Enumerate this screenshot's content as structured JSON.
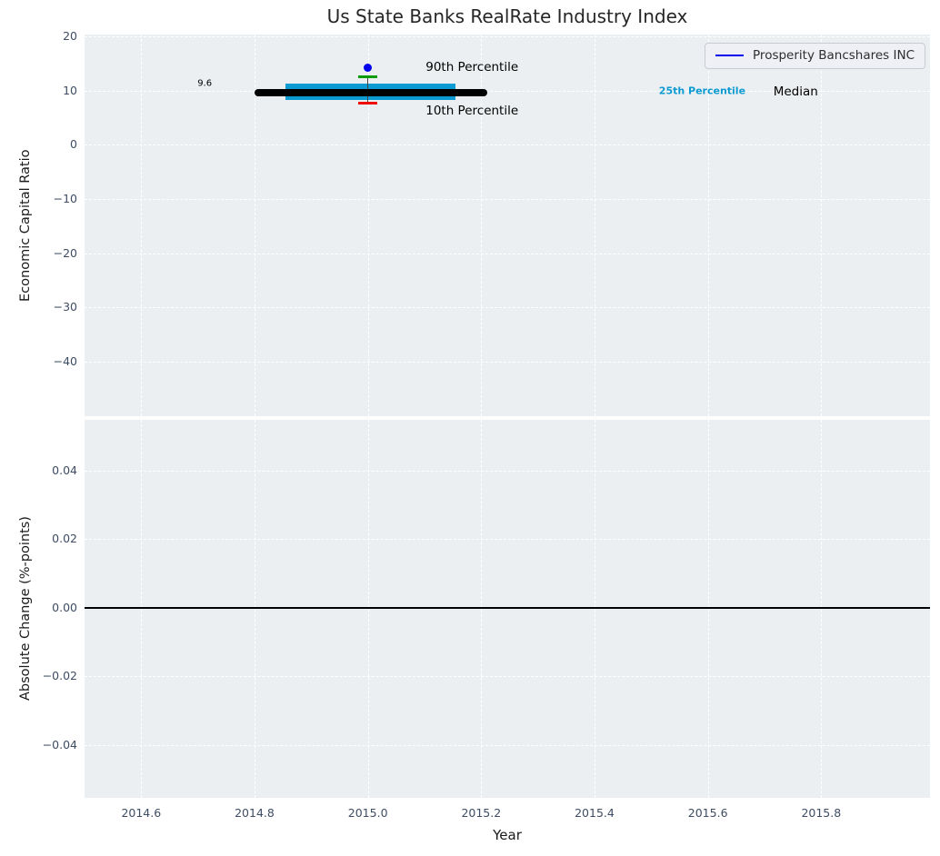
{
  "title": "Us State Banks RealRate Industry Index",
  "colors": {
    "axes_background": "#eceff1",
    "grid": "#ffffff",
    "tick_label": "#3e4d63",
    "axis_label": "#1a1a1a",
    "company_blue": "#0000ee",
    "iqr_cyan": "#0b9bd2",
    "p90_green": "#0a9c0a",
    "p10_red": "#f00808",
    "median_black": "#000000"
  },
  "legend": {
    "entries": [
      {
        "label": "Prosperity Bancshares INC",
        "color": "#0000ee"
      }
    ]
  },
  "chart_data": [
    {
      "type": "scatter",
      "title": "Us State Banks RealRate Industry Index",
      "ylabel": "Economic Capital Ratio",
      "xlim": [
        2014.5,
        2015.992
      ],
      "ylim": [
        -50.1,
        20.34
      ],
      "grid": "white dashed, on",
      "legend_position": "upper right",
      "yticks": {
        "values": [
          20,
          10,
          0,
          -10,
          -20,
          -30,
          -40
        ],
        "labels": [
          "20",
          "10",
          "0",
          "−10",
          "−20",
          "−30",
          "−40"
        ]
      },
      "xticks_grid_only": [
        2014.6,
        2014.8,
        2015.0,
        2015.2,
        2015.4,
        2015.6,
        2015.8
      ],
      "company_point": {
        "name": "Prosperity Bancshares INC",
        "x": 2015.0,
        "y": 14.2,
        "color": "#0000ee",
        "marker": "dot"
      },
      "industry_stats": {
        "median": {
          "value": 9.6,
          "x_start": 2014.8,
          "x_end": 2015.21,
          "color": "#000000",
          "style": "thick line, round caps"
        },
        "iqr_band": {
          "p25": 8.2,
          "p75": 11.2,
          "x_start": 2014.855,
          "x_end": 2015.155,
          "color": "#0b9bd2"
        },
        "p90": {
          "value": 12.6,
          "color": "#0a9c0a",
          "marker": "horizontal cap"
        },
        "p10": {
          "value": 7.75,
          "color": "#f00808",
          "marker": "horizontal cap"
        },
        "whisker": {
          "x": 2015.0,
          "from": 7.75,
          "to": 12.6,
          "color": "#444444"
        }
      },
      "annotations": [
        {
          "text": "9.6",
          "x": 2014.712,
          "y": 11.2,
          "color": "#000000",
          "size": 10,
          "weight": "normal",
          "anchor": "middle"
        },
        {
          "text": "90th Percentile",
          "x": 2015.102,
          "y": 14.3,
          "color": "#000000",
          "size": 13.5,
          "weight": "normal",
          "anchor": "start"
        },
        {
          "text": "10th Percentile",
          "x": 2015.102,
          "y": 6.25,
          "color": "#000000",
          "size": 13.5,
          "weight": "normal",
          "anchor": "start"
        },
        {
          "text": "25th Percentile",
          "x": 2015.59,
          "y": 9.94,
          "color": "#0b9bd2",
          "size": 11,
          "weight": "bold",
          "anchor": "middle"
        },
        {
          "text": "Median",
          "x": 2015.755,
          "y": 9.77,
          "color": "#000000",
          "size": 13.5,
          "weight": "normal",
          "anchor": "middle"
        }
      ]
    },
    {
      "type": "line",
      "ylabel": "Absolute Change (%-points)",
      "xlabel": "Year",
      "xlim": [
        2014.5,
        2015.992
      ],
      "ylim": [
        -0.0554,
        0.0548
      ],
      "grid": "white dashed, on",
      "yticks": {
        "values": [
          0.04,
          0.02,
          0,
          -0.02,
          -0.04
        ],
        "labels": [
          "0.04",
          "0.02",
          "0.00",
          "−0.02",
          "−0.04"
        ]
      },
      "xticks": {
        "values": [
          2014.6,
          2014.8,
          2015.0,
          2015.2,
          2015.4,
          2015.6,
          2015.8
        ],
        "labels": [
          "2014.6",
          "2014.8",
          "2015.0",
          "2015.2",
          "2015.4",
          "2015.6",
          "2015.8"
        ]
      },
      "zero_line": {
        "y": 0,
        "color": "#000000"
      }
    }
  ]
}
